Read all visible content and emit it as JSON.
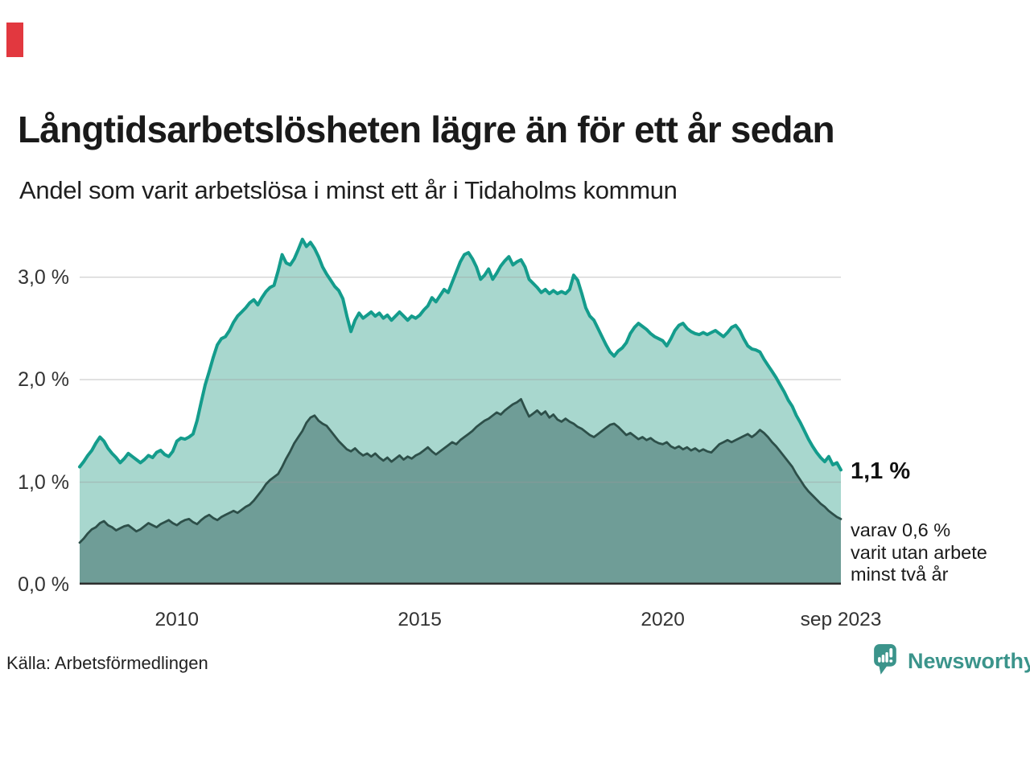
{
  "page": {
    "background": "#ffffff",
    "red_marker_color": "#e2383f"
  },
  "header": {
    "title": "Långtidsarbetslösheten lägre än för ett år sedan",
    "subtitle": "Andel som varit arbetslösa i minst ett år i Tidaholms kommun"
  },
  "chart_data": {
    "type": "area",
    "title": "Långtidsarbetslösheten lägre än för ett år sedan",
    "subtitle": "Andel som varit arbetslösa i minst ett år i Tidaholms kommun",
    "unit": "%",
    "x_start": "2008-01",
    "x_end": "2023-09",
    "points_per_series": 189,
    "ylim": [
      0,
      3.5
    ],
    "grid": "horizontal",
    "legend_position": "none",
    "y_ticks": [
      {
        "label": "3,0 %",
        "value": 3.0
      },
      {
        "label": "2,0 %",
        "value": 2.0
      },
      {
        "label": "1,0 %",
        "value": 1.0
      },
      {
        "label": "0,0 %",
        "value": 0.0
      }
    ],
    "x_ticks": [
      {
        "label": "2010",
        "month": 24
      },
      {
        "label": "2015",
        "month": 84
      },
      {
        "label": "2020",
        "month": 144
      },
      {
        "label": "sep 2023",
        "month": 188
      }
    ],
    "grid_color": "#9a9a9a",
    "axis_line_color": "#2e2e2e",
    "series": [
      {
        "name": "Andel arbetslösa minst ett år",
        "stroke": "#149c8c",
        "fill": "#a8d7ce",
        "stroke_width": 4,
        "values": [
          1.15,
          1.2,
          1.26,
          1.31,
          1.38,
          1.44,
          1.4,
          1.33,
          1.28,
          1.24,
          1.19,
          1.23,
          1.28,
          1.25,
          1.22,
          1.19,
          1.22,
          1.26,
          1.24,
          1.29,
          1.31,
          1.27,
          1.25,
          1.3,
          1.4,
          1.43,
          1.42,
          1.44,
          1.47,
          1.6,
          1.78,
          1.95,
          2.08,
          2.22,
          2.34,
          2.4,
          2.42,
          2.48,
          2.56,
          2.62,
          2.66,
          2.7,
          2.75,
          2.78,
          2.73,
          2.8,
          2.86,
          2.9,
          2.92,
          3.06,
          3.22,
          3.14,
          3.12,
          3.18,
          3.27,
          3.37,
          3.3,
          3.34,
          3.28,
          3.2,
          3.1,
          3.03,
          2.97,
          2.91,
          2.87,
          2.79,
          2.62,
          2.47,
          2.58,
          2.65,
          2.6,
          2.63,
          2.66,
          2.62,
          2.65,
          2.6,
          2.63,
          2.58,
          2.62,
          2.66,
          2.62,
          2.58,
          2.62,
          2.6,
          2.63,
          2.68,
          2.72,
          2.8,
          2.76,
          2.82,
          2.88,
          2.85,
          2.95,
          3.05,
          3.15,
          3.22,
          3.24,
          3.18,
          3.1,
          2.98,
          3.02,
          3.08,
          2.98,
          3.04,
          3.11,
          3.16,
          3.2,
          3.12,
          3.15,
          3.17,
          3.1,
          2.98,
          2.94,
          2.9,
          2.85,
          2.88,
          2.84,
          2.87,
          2.84,
          2.86,
          2.84,
          2.88,
          3.02,
          2.97,
          2.84,
          2.7,
          2.62,
          2.58,
          2.5,
          2.42,
          2.34,
          2.27,
          2.23,
          2.28,
          2.31,
          2.36,
          2.45,
          2.51,
          2.55,
          2.52,
          2.49,
          2.45,
          2.42,
          2.4,
          2.38,
          2.33,
          2.4,
          2.48,
          2.53,
          2.55,
          2.5,
          2.47,
          2.45,
          2.44,
          2.46,
          2.44,
          2.46,
          2.48,
          2.45,
          2.42,
          2.46,
          2.51,
          2.53,
          2.48,
          2.4,
          2.33,
          2.3,
          2.29,
          2.27,
          2.2,
          2.14,
          2.08,
          2.02,
          1.95,
          1.88,
          1.8,
          1.74,
          1.65,
          1.58,
          1.5,
          1.42,
          1.35,
          1.29,
          1.24,
          1.2,
          1.25,
          1.17,
          1.19,
          1.12
        ]
      },
      {
        "name": "Andel arbetslösa minst två år",
        "stroke": "#2d4f49",
        "fill": "#6f9d97",
        "stroke_width": 2.8,
        "values": [
          0.41,
          0.45,
          0.5,
          0.54,
          0.56,
          0.6,
          0.62,
          0.58,
          0.56,
          0.53,
          0.55,
          0.57,
          0.58,
          0.55,
          0.52,
          0.54,
          0.57,
          0.6,
          0.58,
          0.56,
          0.59,
          0.61,
          0.63,
          0.6,
          0.58,
          0.61,
          0.63,
          0.64,
          0.61,
          0.59,
          0.63,
          0.66,
          0.68,
          0.65,
          0.63,
          0.66,
          0.68,
          0.7,
          0.72,
          0.7,
          0.73,
          0.76,
          0.78,
          0.82,
          0.87,
          0.92,
          0.98,
          1.02,
          1.05,
          1.08,
          1.15,
          1.23,
          1.3,
          1.38,
          1.44,
          1.5,
          1.58,
          1.63,
          1.65,
          1.6,
          1.57,
          1.55,
          1.5,
          1.45,
          1.4,
          1.36,
          1.32,
          1.3,
          1.33,
          1.29,
          1.26,
          1.28,
          1.25,
          1.28,
          1.24,
          1.21,
          1.24,
          1.2,
          1.23,
          1.26,
          1.22,
          1.25,
          1.23,
          1.26,
          1.28,
          1.31,
          1.34,
          1.3,
          1.27,
          1.3,
          1.33,
          1.36,
          1.39,
          1.37,
          1.41,
          1.44,
          1.47,
          1.5,
          1.54,
          1.57,
          1.6,
          1.62,
          1.65,
          1.68,
          1.66,
          1.7,
          1.73,
          1.76,
          1.78,
          1.81,
          1.72,
          1.64,
          1.67,
          1.7,
          1.66,
          1.69,
          1.63,
          1.66,
          1.61,
          1.59,
          1.62,
          1.59,
          1.57,
          1.54,
          1.52,
          1.49,
          1.46,
          1.44,
          1.47,
          1.5,
          1.53,
          1.56,
          1.57,
          1.54,
          1.5,
          1.46,
          1.48,
          1.45,
          1.42,
          1.44,
          1.41,
          1.43,
          1.4,
          1.38,
          1.37,
          1.39,
          1.35,
          1.33,
          1.35,
          1.32,
          1.34,
          1.31,
          1.33,
          1.3,
          1.32,
          1.3,
          1.29,
          1.33,
          1.37,
          1.39,
          1.41,
          1.39,
          1.41,
          1.43,
          1.45,
          1.47,
          1.44,
          1.47,
          1.51,
          1.48,
          1.44,
          1.39,
          1.35,
          1.3,
          1.25,
          1.2,
          1.15,
          1.08,
          1.02,
          0.96,
          0.91,
          0.87,
          0.83,
          0.79,
          0.76,
          0.72,
          0.69,
          0.66,
          0.64
        ]
      }
    ],
    "annotations": {
      "end_value_label": "1,1 %",
      "detail_line1": "varav 0,6 %",
      "detail_line2": "varit utan arbete",
      "detail_line3": "minst två år"
    }
  },
  "footer": {
    "source": "Källa: Arbetsförmedlingen",
    "brand": "Newsworthy",
    "brand_color": "#3b948b",
    "brand_icon": "newsworthy-logo-icon"
  }
}
